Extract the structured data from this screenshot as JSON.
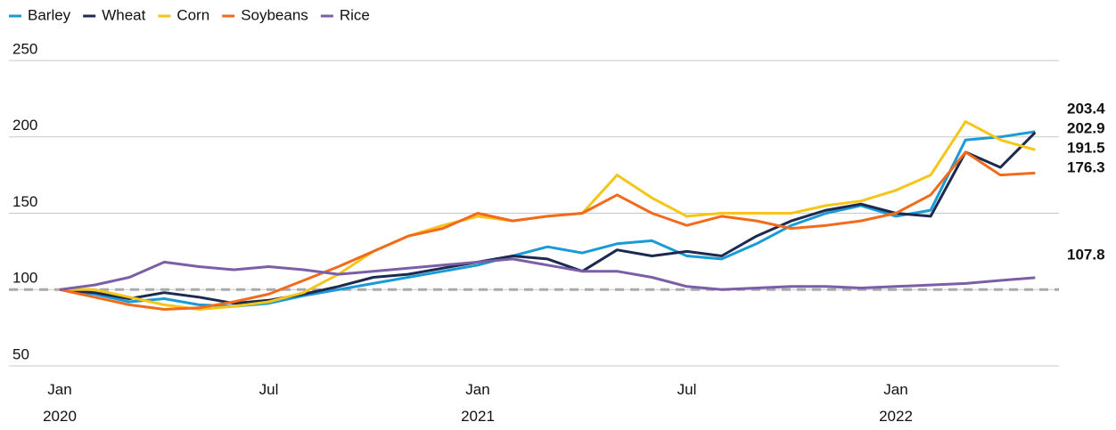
{
  "chart_data": {
    "type": "line",
    "x": [
      "2020-01",
      "2020-02",
      "2020-03",
      "2020-04",
      "2020-05",
      "2020-06",
      "2020-07",
      "2020-08",
      "2020-09",
      "2020-10",
      "2020-11",
      "2020-12",
      "2021-01",
      "2021-02",
      "2021-03",
      "2021-04",
      "2021-05",
      "2021-06",
      "2021-07",
      "2021-08",
      "2021-09",
      "2021-10",
      "2021-11",
      "2021-12",
      "2022-01",
      "2022-02",
      "2022-03",
      "2022-04",
      "2022-05"
    ],
    "series": [
      {
        "name": "Barley",
        "color": "#1a9ad6",
        "values": [
          100,
          97,
          92,
          94,
          90,
          89,
          91,
          96,
          100,
          104,
          108,
          112,
          116,
          122,
          128,
          124,
          130,
          132,
          122,
          120,
          130,
          142,
          150,
          155,
          148,
          152,
          198,
          200,
          203.4
        ]
      },
      {
        "name": "Wheat",
        "color": "#1b2a4e",
        "values": [
          100,
          98,
          94,
          98,
          95,
          91,
          93,
          97,
          102,
          108,
          110,
          114,
          118,
          122,
          120,
          112,
          126,
          122,
          125,
          122,
          135,
          145,
          152,
          156,
          150,
          148,
          190,
          180,
          202.9
        ]
      },
      {
        "name": "Corn",
        "color": "#f5c518",
        "values": [
          100,
          100,
          95,
          90,
          87,
          89,
          92,
          98,
          110,
          125,
          135,
          142,
          148,
          145,
          148,
          150,
          175,
          160,
          148,
          150,
          150,
          150,
          155,
          158,
          165,
          175,
          210,
          198,
          191.5
        ]
      },
      {
        "name": "Soybeans",
        "color": "#f26b1d",
        "values": [
          100,
          95,
          90,
          87,
          88,
          92,
          97,
          106,
          115,
          125,
          135,
          140,
          150,
          145,
          148,
          150,
          162,
          150,
          142,
          148,
          145,
          140,
          142,
          145,
          150,
          162,
          190,
          175,
          176.3
        ]
      },
      {
        "name": "Rice",
        "color": "#7b5ea7",
        "values": [
          100,
          103,
          108,
          118,
          115,
          113,
          115,
          113,
          110,
          112,
          114,
          116,
          118,
          120,
          116,
          112,
          112,
          108,
          102,
          100,
          101,
          102,
          102,
          101,
          102,
          103,
          104,
          106,
          107.8
        ]
      }
    ],
    "ylim": [
      50,
      250
    ],
    "yticks": [
      50,
      100,
      150,
      200,
      250
    ],
    "grid": true,
    "reference_line": 100,
    "xticks": [
      {
        "value": "2020-01",
        "label": "Jan\n2020"
      },
      {
        "value": "2020-07",
        "label": "Jul"
      },
      {
        "value": "2021-01",
        "label": "Jan\n2021"
      },
      {
        "value": "2021-07",
        "label": "Jul"
      },
      {
        "value": "2022-01",
        "label": "Jan\n2022"
      }
    ],
    "legend": "top-left"
  }
}
